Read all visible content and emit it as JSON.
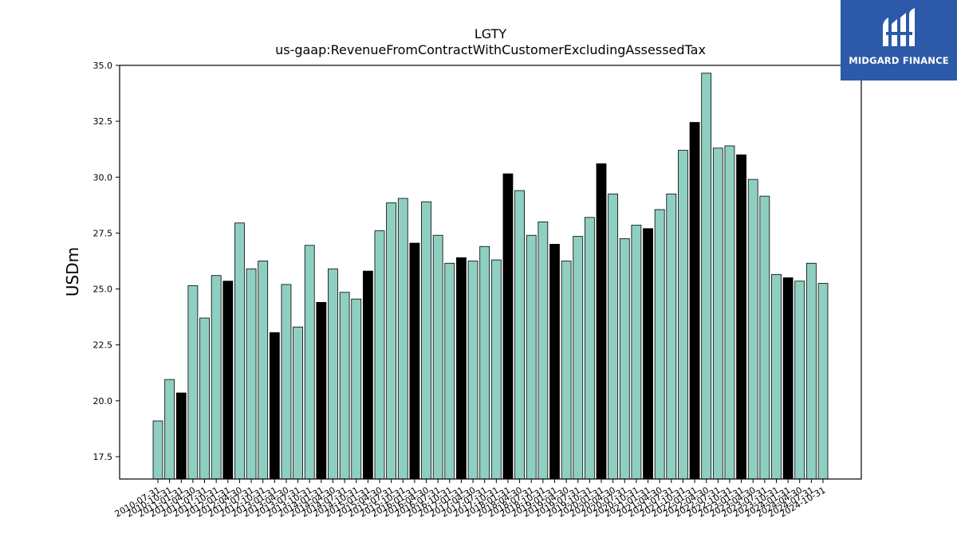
{
  "brand": {
    "name": "MIDGARD FINANCE",
    "color": "#2c5aa8",
    "icon": "midgard-logo-icon"
  },
  "chart_data": {
    "type": "bar",
    "title": "LGTY",
    "subtitle": "us-gaap:RevenueFromContractWithCustomerExcludingAssessedTax",
    "xlabel": "",
    "ylabel": "USDm",
    "ylim": [
      16.5,
      35.0
    ],
    "yticks": [
      17.5,
      20.0,
      22.5,
      25.0,
      27.5,
      30.0,
      32.5,
      35.0
    ],
    "grid": false,
    "colors": {
      "quarter": "#8ecfc1",
      "fiscal_year_end": "#000000"
    },
    "categories": [
      "2010-07-31",
      "2010-10-31",
      "2011-01-31",
      "2011-04-30",
      "2011-07-31",
      "2011-10-31",
      "2012-01-31",
      "2012-04-30",
      "2012-07-31",
      "2012-10-31",
      "2013-01-31",
      "2013-04-30",
      "2013-07-31",
      "2013-10-31",
      "2014-01-31",
      "2014-04-30",
      "2014-07-31",
      "2014-10-31",
      "2015-01-31",
      "2015-04-30",
      "2015-07-31",
      "2015-10-31",
      "2016-01-31",
      "2016-04-30",
      "2016-07-31",
      "2016-10-31",
      "2017-01-31",
      "2017-04-30",
      "2017-07-31",
      "2017-10-31",
      "2018-01-31",
      "2018-04-30",
      "2018-07-31",
      "2018-10-31",
      "2019-01-31",
      "2019-04-30",
      "2019-07-31",
      "2019-10-31",
      "2020-01-31",
      "2020-04-30",
      "2020-07-31",
      "2020-10-31",
      "2021-01-31",
      "2021-04-30",
      "2021-07-31",
      "2021-10-31",
      "2022-01-31",
      "2022-04-30",
      "2022-07-31",
      "2022-10-31",
      "2023-01-31",
      "2023-04-30",
      "2023-07-31",
      "2023-10-31",
      "2024-01-31",
      "2024-04-30",
      "2024-07-31",
      "2024-10-31"
    ],
    "values": [
      19.1,
      20.95,
      20.35,
      25.15,
      23.7,
      25.6,
      25.35,
      27.95,
      25.9,
      26.25,
      23.05,
      25.2,
      23.3,
      26.95,
      24.4,
      25.9,
      24.85,
      24.55,
      25.8,
      27.6,
      28.85,
      29.05,
      27.05,
      28.9,
      27.4,
      26.15,
      26.4,
      26.25,
      26.9,
      26.3,
      30.15,
      29.4,
      27.4,
      28.0,
      27.0,
      26.25,
      27.35,
      28.2,
      30.6,
      29.25,
      27.25,
      27.85,
      27.7,
      28.55,
      29.25,
      31.2,
      32.45,
      34.65,
      31.3,
      31.4,
      31.0,
      29.9,
      29.15,
      25.65,
      25.5,
      25.35,
      26.15,
      25.25
    ],
    "highlight": [
      false,
      false,
      true,
      false,
      false,
      false,
      true,
      false,
      false,
      false,
      true,
      false,
      false,
      false,
      true,
      false,
      false,
      false,
      true,
      false,
      false,
      false,
      true,
      false,
      false,
      false,
      true,
      false,
      false,
      false,
      true,
      false,
      false,
      false,
      true,
      false,
      false,
      false,
      true,
      false,
      false,
      false,
      true,
      false,
      false,
      false,
      true,
      false,
      false,
      false,
      true,
      false,
      false,
      false,
      true,
      false,
      false,
      false
    ]
  }
}
